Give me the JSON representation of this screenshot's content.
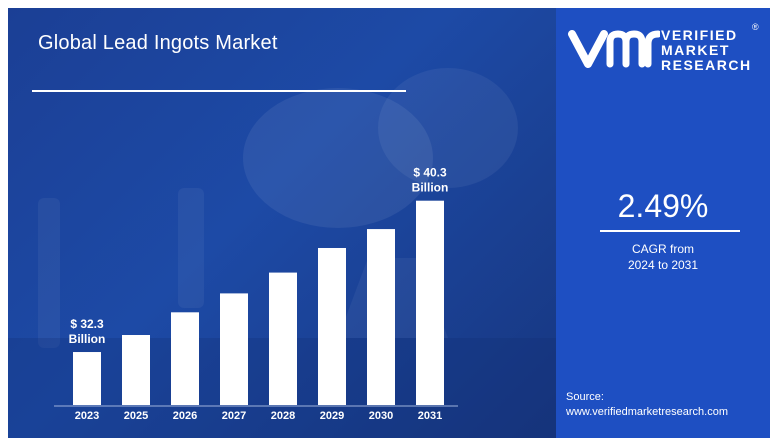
{
  "header": {
    "title": "Global Lead Ingots Market"
  },
  "chart_data": {
    "type": "bar",
    "title": "Global Lead Ingots Market",
    "categories": [
      "2023",
      "2025",
      "2026",
      "2027",
      "2028",
      "2029",
      "2030",
      "2031"
    ],
    "values": [
      32.3,
      33.2,
      34.4,
      35.4,
      36.5,
      37.8,
      38.8,
      40.3
    ],
    "annotations": [
      {
        "category": "2023",
        "line1": "$ 32.3",
        "line2": "Billion"
      },
      {
        "category": "2031",
        "line1": "$ 40.3",
        "line2": "Billion"
      }
    ],
    "ylim": [
      29.5,
      41.5
    ],
    "xlabel": "",
    "ylabel": "",
    "grid": false,
    "legend": "none"
  },
  "brand": {
    "line1": "VERIFIED",
    "line2": "MARKET",
    "line3": "RESEARCH",
    "mark": "®"
  },
  "cagr": {
    "value": "2.49%",
    "label_line1": "CAGR from",
    "label_line2": "2024 to 2031"
  },
  "source": {
    "label": "Source:",
    "url": "www.verifiedmarketresearch.com"
  },
  "colors": {
    "left_bg": "#1d4aa6",
    "right_bg": "#1e4fc2",
    "bar": "#ffffff",
    "text": "#ffffff"
  },
  "icons": {
    "logo": "vmr-logo-icon"
  }
}
